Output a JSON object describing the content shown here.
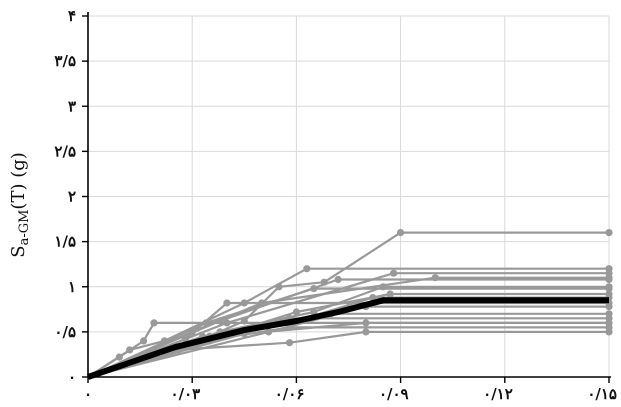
{
  "chart_data": {
    "type": "line",
    "title": "",
    "xlabel": "",
    "ylabel": "Sa-GM(T) (g)",
    "ylabel_main": "S",
    "ylabel_sub": "a-GM",
    "ylabel_rest": "(T) (g)",
    "xlim": [
      0,
      0.15
    ],
    "ylim": [
      0,
      4
    ],
    "xticks": [
      0,
      0.03,
      0.06,
      0.09,
      0.12,
      0.15
    ],
    "xtick_labels": [
      "۰",
      "۰/۰۳",
      "۰/۰۶",
      "۰/۰۹",
      "۰/۱۲",
      "۰/۱۵"
    ],
    "yticks": [
      0,
      0.5,
      1,
      1.5,
      2,
      2.5,
      3,
      3.5,
      4
    ],
    "ytick_labels": [
      "۰",
      "۰/۵",
      "۱",
      "۱/۵",
      "۲",
      "۲/۵",
      "۳",
      "۳/۵",
      "۴"
    ],
    "grid": true,
    "colors": {
      "records": "#999999",
      "mean": "#000000"
    },
    "series": [
      {
        "values": [
          [
            0,
            0
          ],
          [
            0.009,
            0.22
          ],
          [
            0.016,
            0.4
          ],
          [
            0.019,
            0.6
          ],
          [
            0.15,
            0.6
          ]
        ]
      },
      {
        "values": [
          [
            0,
            0
          ],
          [
            0.012,
            0.3
          ],
          [
            0.022,
            0.4
          ],
          [
            0.045,
            0.82
          ],
          [
            0.063,
            1.2
          ],
          [
            0.15,
            1.2
          ]
        ]
      },
      {
        "values": [
          [
            0,
            0
          ],
          [
            0.026,
            0.3
          ],
          [
            0.045,
            0.62
          ],
          [
            0.055,
            1.0
          ],
          [
            0.068,
            1.05
          ],
          [
            0.09,
            1.6
          ],
          [
            0.15,
            1.6
          ]
        ]
      },
      {
        "values": [
          [
            0,
            0
          ],
          [
            0.028,
            0.42
          ],
          [
            0.04,
            0.82
          ],
          [
            0.15,
            0.82
          ]
        ]
      },
      {
        "values": [
          [
            0,
            0
          ],
          [
            0.03,
            0.5
          ],
          [
            0.05,
            0.82
          ],
          [
            0.1,
            1.1
          ],
          [
            0.15,
            1.1
          ]
        ]
      },
      {
        "values": [
          [
            0,
            0
          ],
          [
            0.034,
            0.6
          ],
          [
            0.065,
            0.98
          ],
          [
            0.15,
            0.98
          ]
        ]
      },
      {
        "values": [
          [
            0,
            0
          ],
          [
            0.038,
            0.62
          ],
          [
            0.072,
            1.08
          ],
          [
            0.15,
            1.08
          ]
        ]
      },
      {
        "values": [
          [
            0,
            0
          ],
          [
            0.033,
            0.45
          ],
          [
            0.07,
            0.7
          ],
          [
            0.15,
            0.7
          ]
        ]
      },
      {
        "values": [
          [
            0,
            0
          ],
          [
            0.035,
            0.4
          ],
          [
            0.058,
            0.65
          ],
          [
            0.15,
            0.65
          ]
        ]
      },
      {
        "values": [
          [
            0,
            0
          ],
          [
            0.03,
            0.38
          ],
          [
            0.058,
            0.55
          ],
          [
            0.15,
            0.55
          ]
        ]
      },
      {
        "values": [
          [
            0,
            0
          ],
          [
            0.052,
            0.5
          ],
          [
            0.08,
            0.78
          ],
          [
            0.15,
            0.78
          ]
        ]
      },
      {
        "values": [
          [
            0,
            0
          ],
          [
            0.06,
            0.72
          ],
          [
            0.087,
            0.92
          ],
          [
            0.15,
            0.92
          ]
        ]
      },
      {
        "values": [
          [
            0,
            0
          ],
          [
            0.025,
            0.3
          ],
          [
            0.058,
            0.38
          ],
          [
            0.08,
            0.5
          ],
          [
            0.15,
            0.5
          ]
        ]
      },
      {
        "values": [
          [
            0,
            0
          ],
          [
            0.045,
            0.48
          ],
          [
            0.08,
            0.6
          ],
          [
            0.15,
            0.6
          ]
        ]
      },
      {
        "values": [
          [
            0,
            0
          ],
          [
            0.038,
            0.5
          ],
          [
            0.065,
            0.72
          ],
          [
            0.085,
            1.0
          ],
          [
            0.15,
            1.0
          ]
        ]
      },
      {
        "values": [
          [
            0,
            0
          ],
          [
            0.04,
            0.6
          ],
          [
            0.088,
            1.15
          ],
          [
            0.15,
            1.15
          ]
        ]
      },
      {
        "values": [
          [
            0,
            0
          ],
          [
            0.035,
            0.45
          ],
          [
            0.06,
            0.62
          ],
          [
            0.082,
            0.88
          ],
          [
            0.15,
            0.88
          ]
        ]
      }
    ],
    "mean_series": [
      [
        0,
        0
      ],
      [
        0.025,
        0.33
      ],
      [
        0.045,
        0.52
      ],
      [
        0.06,
        0.62
      ],
      [
        0.072,
        0.72
      ],
      [
        0.085,
        0.85
      ],
      [
        0.15,
        0.85
      ]
    ]
  }
}
